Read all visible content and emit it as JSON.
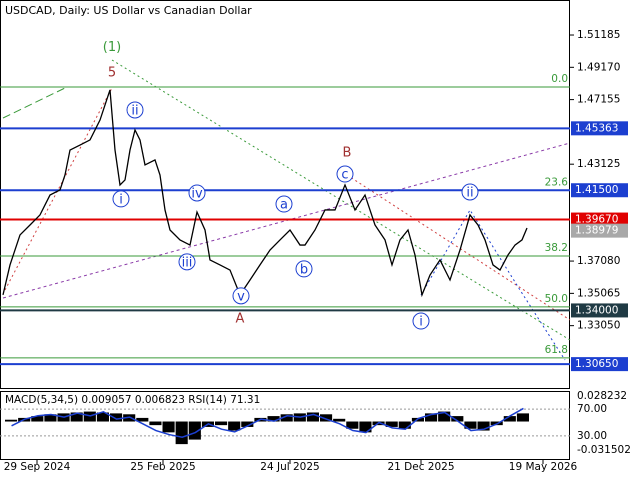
{
  "chart_data": {
    "type": "line",
    "title": "USDCAD, Daily:  US Dollar vs Canadian Dollar",
    "xlim": [
      0,
      570
    ],
    "xticks": [
      {
        "value": 37,
        "label": "29 Sep 2024"
      },
      {
        "value": 163,
        "label": "25 Feb 2025"
      },
      {
        "value": 290,
        "label": "24 Jul 2025"
      },
      {
        "value": 421,
        "label": "21 Dec 2025"
      },
      {
        "value": 543,
        "label": "19 May 2026"
      }
    ],
    "ylim": [
      1.2916,
      1.5337
    ],
    "yticks": [
      1.51185,
      {
        "value": 1.4917,
        "label": "1.49170"
      },
      1.47155,
      1.43125,
      {
        "value": 1.3708,
        "label": "1.37080"
      },
      1.35065,
      {
        "value": 1.3305,
        "label": "1.33050"
      }
    ],
    "series": [
      {
        "name": "USDCAD",
        "color": "#000000",
        "x": [
          3,
          10,
          20,
          30,
          40,
          50,
          60,
          65,
          70,
          80,
          90,
          100,
          110,
          115,
          120,
          125,
          130,
          135,
          140,
          145,
          155,
          160,
          165,
          170,
          180,
          190,
          197,
          205,
          210,
          220,
          230,
          240,
          250,
          260,
          270,
          280,
          290,
          300,
          305,
          315,
          325,
          335,
          345,
          355,
          365,
          375,
          385,
          392,
          400,
          408,
          415,
          422,
          430,
          440,
          450,
          460,
          470,
          478,
          485,
          493,
          500,
          508,
          515,
          522,
          527
        ],
        "values": [
          1.3497,
          1.3684,
          1.3871,
          1.3933,
          1.3996,
          1.412,
          1.4152,
          1.4245,
          1.4401,
          1.4432,
          1.4464,
          1.4588,
          1.4776,
          1.4401,
          1.4183,
          1.4214,
          1.4401,
          1.4526,
          1.4464,
          1.4308,
          1.4339,
          1.4245,
          1.4027,
          1.3902,
          1.384,
          1.3808,
          1.4014,
          1.3902,
          1.3715,
          1.3684,
          1.3652,
          1.3497,
          1.359,
          1.3684,
          1.3777,
          1.384,
          1.3902,
          1.3808,
          1.3808,
          1.3902,
          1.4027,
          1.4027,
          1.4183,
          1.4027,
          1.412,
          1.3933,
          1.384,
          1.3684,
          1.384,
          1.3902,
          1.3746,
          1.3497,
          1.3621,
          1.3715,
          1.359,
          1.3777,
          1.3996,
          1.3933,
          1.384,
          1.3684,
          1.3652,
          1.3746,
          1.3808,
          1.384,
          1.3914
        ]
      }
    ],
    "levels": [
      {
        "value": 1.45363,
        "label": "1.45363",
        "color": "#1c3fd0"
      },
      {
        "value": 1.415,
        "label": "1.41500",
        "color": "#1c3fd0"
      },
      {
        "value": 1.3967,
        "label": "1.39670",
        "color": "#e00000"
      },
      {
        "value": 1.34,
        "label": "1.34000",
        "color": "#1f3a44"
      },
      {
        "value": 1.3065,
        "label": "1.30650",
        "color": "#1c3fd0"
      }
    ],
    "last_price": {
      "value": 1.38979,
      "label": "1.38979",
      "color": "#a8a8a8"
    },
    "fib_color": "#3a9a3a",
    "fib_levels": [
      {
        "label": "0.0",
        "value": 1.4794
      },
      {
        "label": "23.6",
        "value": 1.4149
      },
      {
        "label": "38.2",
        "value": 1.374
      },
      {
        "label": "50.0",
        "value": 1.3422
      },
      {
        "label": "61.8",
        "value": 1.3104
      }
    ],
    "waves": [
      {
        "text": "(1)",
        "x": 112,
        "y": 1.5047,
        "style": "plain",
        "color": "#3a9a3a"
      },
      {
        "text": "5",
        "x": 112,
        "y": 1.4888,
        "style": "plain",
        "color": "#a03030"
      },
      {
        "text": "B",
        "x": 347,
        "y": 1.4388,
        "style": "plain",
        "color": "#a03030"
      },
      {
        "text": "A",
        "x": 240,
        "y": 1.3353,
        "style": "plain",
        "color": "#a03030"
      },
      {
        "text": "ii",
        "x": 135,
        "y": 1.4651,
        "style": "circle",
        "color": "#1c3fd0"
      },
      {
        "text": "i",
        "x": 121,
        "y": 1.4096,
        "style": "circle",
        "color": "#1c3fd0"
      },
      {
        "text": "iv",
        "x": 197,
        "y": 1.4133,
        "style": "circle",
        "color": "#1c3fd0"
      },
      {
        "text": "iii",
        "x": 187,
        "y": 1.3703,
        "style": "circle",
        "color": "#1c3fd0"
      },
      {
        "text": "v",
        "x": 241,
        "y": 1.3491,
        "style": "circle",
        "color": "#1c3fd0"
      },
      {
        "text": "a",
        "x": 284,
        "y": 1.4064,
        "style": "circle",
        "color": "#1c3fd0"
      },
      {
        "text": "b",
        "x": 304,
        "y": 1.3659,
        "style": "circle",
        "color": "#1c3fd0"
      },
      {
        "text": "c",
        "x": 345,
        "y": 1.4251,
        "style": "circle",
        "color": "#1c3fd0"
      },
      {
        "text": "ii",
        "x": 470,
        "y": 1.4139,
        "style": "circle",
        "color": "#1c3fd0"
      },
      {
        "text": "i",
        "x": 421,
        "y": 1.3334,
        "style": "circle",
        "color": "#1c3fd0"
      }
    ],
    "indicator": {
      "title": "MACD(5,34,5) 0.009057 0.006823 RSI(14) 71.31",
      "macd_ylim": [
        -0.031502,
        0.028232
      ],
      "macd_ticks": [
        0.028232,
        -0.031502
      ],
      "rsi_ylim": [
        0,
        100
      ],
      "rsi_ticks": [
        {
          "value": 70,
          "label": "70.00"
        },
        {
          "value": 30,
          "label": "30.00"
        }
      ],
      "rsi_color": "#1c3fd0",
      "histogram": [
        0.002,
        0.004,
        0.006,
        0.008,
        0.009,
        0.01,
        0.011,
        0.01,
        0.009,
        0.008,
        0.004,
        -0.004,
        -0.012,
        -0.025,
        -0.02,
        -0.006,
        -0.004,
        -0.01,
        -0.006,
        0.004,
        0.006,
        0.008,
        0.009,
        0.01,
        0.008,
        0.003,
        -0.008,
        -0.012,
        -0.004,
        -0.006,
        -0.008,
        0.004,
        0.009,
        0.011,
        0.006,
        -0.008,
        -0.01,
        -0.004,
        0.006,
        0.009
      ],
      "rsi": [
        45,
        55,
        60,
        62,
        58,
        64,
        60,
        66,
        55,
        58,
        48,
        38,
        32,
        28,
        35,
        48,
        40,
        36,
        45,
        55,
        52,
        60,
        58,
        62,
        55,
        48,
        38,
        35,
        50,
        42,
        40,
        56,
        62,
        65,
        52,
        38,
        40,
        48,
        60,
        71
      ]
    }
  }
}
